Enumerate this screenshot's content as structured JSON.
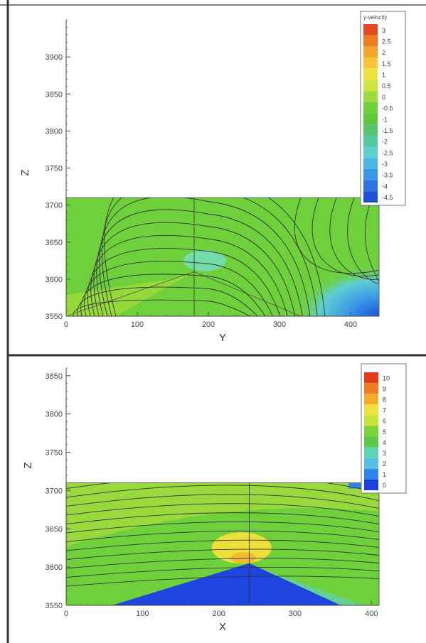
{
  "chart_data": [
    {
      "type": "contour",
      "title": "",
      "xlabel": "Y",
      "ylabel": "Z",
      "xlim": [
        0,
        440
      ],
      "ylim": [
        3550,
        3950
      ],
      "xticks": [
        0,
        100,
        200,
        300,
        400
      ],
      "yticks": [
        3550,
        3600,
        3650,
        3700,
        3750,
        3800,
        3850,
        3900
      ],
      "domain_top": 3710,
      "vertical_line_x": 180,
      "terrain": [
        [
          0,
          3550
        ],
        [
          180,
          3610
        ],
        [
          330,
          3550
        ]
      ],
      "legend_title": "y-velocity",
      "legend_values": [
        "3",
        "2.5",
        "2",
        "1.5",
        "1",
        "0.5",
        "0",
        "-0.5",
        "-1",
        "-1.5",
        "-2",
        "-2.5",
        "-3",
        "-3.5",
        "-4",
        "-4.5"
      ],
      "legend_colors": [
        "#e64a1e",
        "#ee7a22",
        "#f2a62a",
        "#f5c63a",
        "#f0e23c",
        "#cfe63e",
        "#9ddc3a",
        "#6ed03a",
        "#5cc83c",
        "#58c46e",
        "#56c8a0",
        "#5ecfd0",
        "#4ab8e6",
        "#3a96e8",
        "#2c74e4",
        "#1e4fd8"
      ],
      "regions": [
        {
          "name": "background",
          "color": "#6ed03a"
        },
        {
          "name": "lower-left-strip",
          "color": "#9ddc3a"
        },
        {
          "name": "peak-bubble",
          "color": "#74dca8"
        },
        {
          "name": "right-low-zone",
          "color": "#3a96e8"
        }
      ]
    },
    {
      "type": "contour",
      "title": "",
      "xlabel": "X",
      "ylabel": "Z",
      "xlim": [
        0,
        410
      ],
      "ylim": [
        3550,
        3860
      ],
      "xticks": [
        0,
        100,
        200,
        300,
        400
      ],
      "yticks": [
        3550,
        3600,
        3650,
        3700,
        3750,
        3800,
        3850
      ],
      "domain_top": 3710,
      "vertical_line_x": 240,
      "terrain": [
        [
          0,
          3550
        ],
        [
          60,
          3550
        ],
        [
          240,
          3605
        ],
        [
          360,
          3550
        ],
        [
          410,
          3550
        ]
      ],
      "legend_title": "",
      "legend_values": [
        "10",
        "9",
        "8",
        "7",
        "6",
        "5",
        "4",
        "3",
        "2",
        "1",
        "0"
      ],
      "legend_colors": [
        "#e23a1a",
        "#ee7a22",
        "#f4ac2c",
        "#f2e03a",
        "#c8e43c",
        "#7cd43a",
        "#5cc84a",
        "#5ed2b4",
        "#56c0e4",
        "#2f86e8",
        "#1a3fdc"
      ],
      "regions": [
        {
          "name": "background",
          "color": "#6ed03a"
        },
        {
          "name": "upper-band",
          "color": "#a2dc3c"
        },
        {
          "name": "yellow-bubble",
          "color": "#eee03a"
        },
        {
          "name": "terrain-low",
          "color": "#1f45e0"
        }
      ]
    }
  ]
}
